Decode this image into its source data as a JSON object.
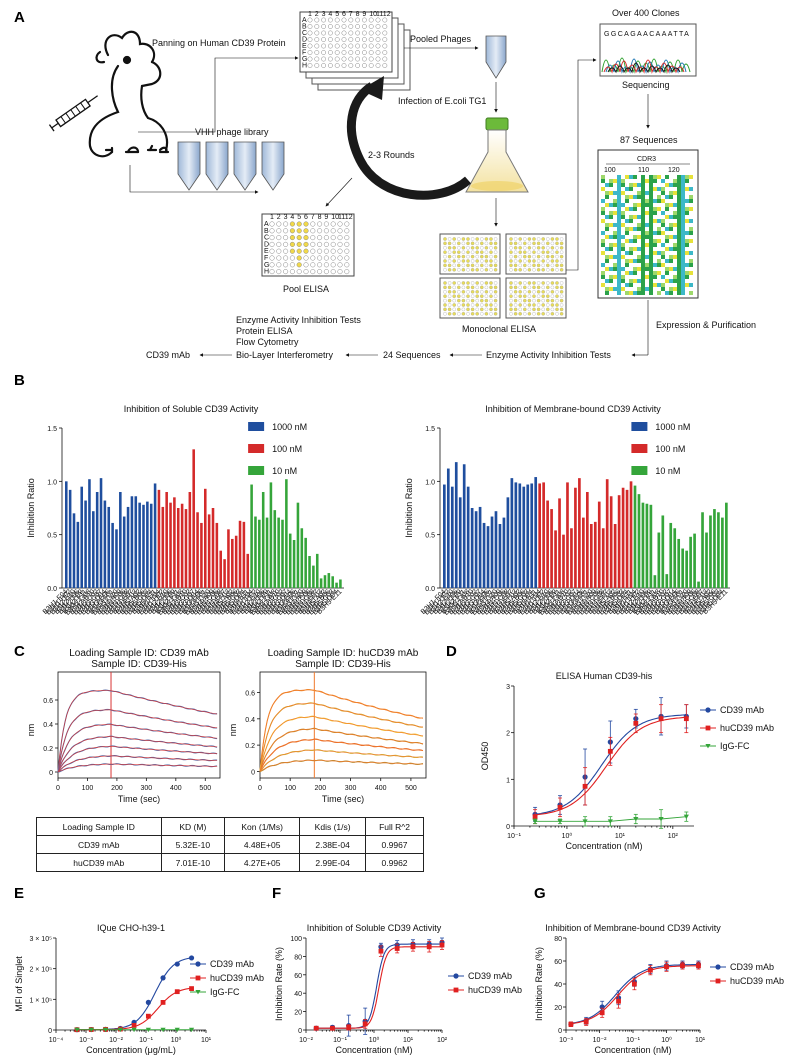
{
  "panels": {
    "a": "A",
    "b": "B",
    "c": "C",
    "d": "D",
    "e": "E",
    "f": "F",
    "g": "G"
  },
  "workflow": {
    "panning": "Panning on Human CD39 Protein",
    "pooled_phages": "Pooled Phages",
    "over_clones": "Over 400 Clones",
    "sequencing": "Sequencing",
    "infection": "Infection of E.coli TG1",
    "vhh_library": "VHH phage library",
    "rounds": "2-3 Rounds",
    "sequences87": "87 Sequences",
    "cdr3": "CDR3",
    "aln_ticks": [
      "100",
      "110",
      "120"
    ],
    "pool_elisa": "Pool ELISA",
    "monoclonal_elisa": "Monoclonal ELISA",
    "expression": "Expression & Purification",
    "tests_list": [
      "Enzyme Activity Inhibition Tests",
      "Protein ELISA",
      "Flow Cytometry",
      "Bio-Layer Interferometry"
    ],
    "cd39_mab": "CD39 mAb",
    "seq24": "24 Sequences",
    "enzyme_tests": "Enzyme Activity Inhibition Tests",
    "dna_seq": "GGCAGAACAAATTA",
    "plate_rows": [
      "A",
      "B",
      "C",
      "D",
      "E",
      "F",
      "G",
      "H"
    ],
    "plate_cols": [
      "1",
      "2",
      "3",
      "4",
      "5",
      "6",
      "7",
      "8",
      "9",
      "10",
      "11",
      "12"
    ]
  },
  "kinetics_table": {
    "headers": [
      "Loading Sample ID",
      "KD (M)",
      "Kon (1/Ms)",
      "Kdis (1/s)",
      "Full R^2"
    ],
    "rows": [
      [
        "CD39 mAb",
        "5.32E-10",
        "4.48E+05",
        "2.38E-04",
        "0.9967"
      ],
      [
        "huCD39 mAb",
        "7.01E-10",
        "4.27E+05",
        "2.99E-04",
        "0.9962"
      ]
    ]
  },
  "colors": {
    "blue": "#1f4e9e",
    "red": "#d42a2a",
    "green": "#35a53a",
    "blue2": "#2348a0",
    "red2": "#e02020"
  },
  "chart_data": [
    {
      "id": "B1",
      "type": "bar",
      "title": "Inhibition of Soluble CD39 Activity",
      "ylabel": "Inhibition Ratio",
      "ylim": [
        0,
        1.5
      ],
      "yticks": [
        "0.0",
        "0.5",
        "1.0",
        "1.5"
      ],
      "legend": [
        "1000 nM",
        "100 nM",
        "10 nM"
      ],
      "categories": [
        "B3H1-F04",
        "B3H1-H02",
        "B3H2-E10",
        "B3H2-F06",
        "B3H2-F09",
        "B3H2-F11",
        "B3H2-G08",
        "B3H3-B10",
        "B3H3-C02",
        "B3H3-C07",
        "B3H3-D04",
        "B3H3-E06",
        "B3H3-F01",
        "B3H3-G10",
        "B3H4-A09",
        "B3H4-C06",
        "B3H4-C08",
        "B3H4-E07",
        "B3H4-F03",
        "B3H5-A02",
        "B3H5-B06",
        "B3H5-C03",
        "B3H5-D04",
        "B3H5-E11"
      ],
      "series": [
        {
          "name": "1000 nM",
          "values": [
            1.0,
            0.92,
            0.7,
            0.62,
            0.95,
            0.82,
            1.02,
            0.72,
            0.9,
            1.03,
            0.82,
            0.76,
            0.61,
            0.55,
            0.9,
            0.67,
            0.76,
            0.86,
            0.86,
            0.8,
            0.78,
            0.81,
            0.79,
            0.98
          ]
        },
        {
          "name": "100 nM",
          "values": [
            0.92,
            0.76,
            0.9,
            0.8,
            0.85,
            0.75,
            0.79,
            0.74,
            0.9,
            1.3,
            0.71,
            0.61,
            0.93,
            0.69,
            0.75,
            0.61,
            0.35,
            0.27,
            0.55,
            0.46,
            0.49,
            0.63,
            0.62,
            0.32
          ]
        },
        {
          "name": "10 nM",
          "values": [
            0.97,
            0.67,
            0.64,
            0.9,
            0.66,
            0.99,
            0.73,
            0.66,
            0.64,
            1.02,
            0.51,
            0.45,
            0.8,
            0.56,
            0.47,
            0.3,
            0.21,
            0.32,
            0.09,
            0.12,
            0.14,
            0.11,
            0.05,
            0.08
          ]
        }
      ]
    },
    {
      "id": "B2",
      "type": "bar",
      "title": "Inhibition of Membrane-bound CD39 Activity",
      "ylabel": "Inhibition Ratio",
      "ylim": [
        0,
        1.5
      ],
      "yticks": [
        "0.0",
        "0.5",
        "1.0",
        "1.5"
      ],
      "legend": [
        "1000 nM",
        "100 nM",
        "10 nM"
      ],
      "categories": [
        "B3H1-F04",
        "B3H1-H02",
        "B3H2-E10",
        "B3H2-F06",
        "B3H2-F09",
        "B3H2-F11",
        "B3H2-G08",
        "B3H3-B10",
        "B3H3-C02",
        "B3H3-C07",
        "B3H3-D04",
        "B3H3-E06",
        "B3H3-F01",
        "B3H3-G10",
        "B3H4-A09",
        "B3H4-C06",
        "B3H4-C08",
        "B3H4-E07",
        "B3H4-F03",
        "B3H5-A02",
        "B3H5-B06",
        "B3H5-C03",
        "B3H5-D04",
        "B3H5-E11"
      ],
      "series": [
        {
          "name": "1000 nM",
          "values": [
            0.97,
            1.12,
            0.95,
            1.18,
            0.85,
            1.16,
            0.95,
            0.75,
            0.72,
            0.76,
            0.61,
            0.58,
            0.67,
            0.72,
            0.6,
            0.66,
            0.85,
            1.03,
            0.99,
            0.98,
            0.95,
            0.97,
            0.98,
            1.04
          ]
        },
        {
          "name": "100 nM",
          "values": [
            0.98,
            0.99,
            0.82,
            0.74,
            0.54,
            0.84,
            0.5,
            0.99,
            0.56,
            0.94,
            1.03,
            0.66,
            0.9,
            0.6,
            0.62,
            0.81,
            0.56,
            1.02,
            0.86,
            0.6,
            0.87,
            0.94,
            0.92,
            1.0
          ]
        },
        {
          "name": "10 nM",
          "values": [
            0.96,
            0.88,
            0.8,
            0.79,
            0.78,
            0.12,
            0.52,
            0.68,
            0.13,
            0.61,
            0.56,
            0.46,
            0.37,
            0.35,
            0.48,
            0.51,
            0.06,
            0.71,
            0.52,
            0.68,
            0.74,
            0.71,
            0.66,
            0.8
          ]
        }
      ]
    },
    {
      "id": "C1",
      "type": "line",
      "title_lines": [
        "Loading Sample ID: CD39 mAb",
        "Sample ID: CD39-His"
      ],
      "xlabel": "Time (sec)",
      "ylabel": "nm",
      "xlim": [
        0,
        550
      ],
      "ylim": [
        -0.05,
        0.75
      ],
      "xticks": [
        "0",
        "100",
        "200",
        "300",
        "400",
        "500"
      ],
      "yticks": [
        "0",
        "0.2",
        "0.4",
        "0.6"
      ],
      "assoc_end": 180,
      "plateaus": [
        0.68,
        0.52,
        0.4,
        0.3,
        0.22,
        0.14,
        0.07
      ],
      "offrate": 0.000238
    },
    {
      "id": "C2",
      "type": "line",
      "title_lines": [
        "Loading Sample ID: huCD39 mAb",
        "Sample ID: CD39-His"
      ],
      "xlabel": "Time (sec)",
      "ylabel": "nm",
      "xlim": [
        0,
        550
      ],
      "ylim": [
        -0.05,
        0.68
      ],
      "xticks": [
        "0",
        "100",
        "200",
        "300",
        "400",
        "500"
      ],
      "yticks": [
        "0",
        "0.2",
        "0.4",
        "0.6"
      ],
      "assoc_end": 180,
      "plateaus": [
        0.62,
        0.52,
        0.42,
        0.33,
        0.25,
        0.17,
        0.09
      ],
      "offrate": 0.000299
    },
    {
      "id": "D",
      "type": "line",
      "title": "ELISA Human CD39-his",
      "xlabel": "Concentration (nM)",
      "ylabel": "OD450",
      "xlog": true,
      "xlim": [
        -1,
        2.4
      ],
      "ylim": [
        0,
        3
      ],
      "xticks": [
        "10⁻¹",
        "10⁰",
        "10¹",
        "10²"
      ],
      "yticks": [
        "0",
        "1",
        "2",
        "3"
      ],
      "x": [
        0.25,
        0.74,
        2.2,
        6.6,
        20,
        60,
        180
      ],
      "series": [
        {
          "name": "CD39 mAb",
          "values": [
            0.25,
            0.45,
            1.05,
            1.8,
            2.3,
            2.35,
            2.35
          ],
          "err": [
            0.15,
            0.2,
            0.6,
            0.45,
            0.2,
            0.4,
            0.25
          ],
          "ec50": 4.5,
          "top": 2.4,
          "bottom": 0.2
        },
        {
          "name": "huCD39 mAb",
          "values": [
            0.2,
            0.4,
            0.85,
            1.6,
            2.2,
            2.3,
            2.3
          ],
          "err": [
            0.15,
            0.2,
            0.4,
            0.3,
            0.2,
            0.3,
            0.3
          ],
          "ec50": 5.5,
          "top": 2.35,
          "bottom": 0.2
        },
        {
          "name": "IgG-FC",
          "values": [
            0.1,
            0.1,
            0.1,
            0.1,
            0.15,
            0.15,
            0.2
          ],
          "err": [
            0.05,
            0.05,
            0.1,
            0.1,
            0.1,
            0.2,
            0.1
          ]
        }
      ]
    },
    {
      "id": "E",
      "type": "line",
      "title": "IQue CHO-h39-1",
      "xlabel": "Concentration (μg/mL)",
      "ylabel": "MFI of Singlet",
      "xlog": true,
      "xlim": [
        -4,
        1
      ],
      "ylim": [
        0,
        300000
      ],
      "xticks": [
        "10⁻⁴",
        "10⁻³",
        "10⁻²",
        "10⁻¹",
        "10⁰",
        "10¹"
      ],
      "yticks": [
        "0",
        "1 × 10⁵",
        "2 × 10⁵",
        "3 × 10⁵"
      ],
      "x": [
        0.0005,
        0.0015,
        0.0045,
        0.014,
        0.04,
        0.12,
        0.37,
        1.1,
        3.3
      ],
      "series": [
        {
          "name": "CD39 mAb",
          "values": [
            1000,
            1500,
            2000,
            5000,
            25000,
            90000,
            170000,
            215000,
            235000
          ],
          "ec50": 0.2,
          "top": 240000,
          "bottom": 1000
        },
        {
          "name": "huCD39 mAb",
          "values": [
            1000,
            1500,
            2000,
            3000,
            15000,
            45000,
            90000,
            125000,
            135000
          ],
          "ec50": 0.25,
          "top": 140000,
          "bottom": 1000
        },
        {
          "name": "IgG-FC",
          "values": [
            1000,
            1000,
            1000,
            1000,
            1000,
            1000,
            1000,
            1000,
            1000
          ]
        }
      ]
    },
    {
      "id": "F",
      "type": "line",
      "title": "Inhibition of Soluble CD39 Activity",
      "xlabel": "Concentration (nM)",
      "ylabel": "Inhibition Rate (%)",
      "xlog": true,
      "xlim": [
        -2,
        2
      ],
      "ylim": [
        -5,
        100
      ],
      "xticks": [
        "10⁻²",
        "10⁻¹",
        "10⁰",
        "10¹",
        "10²"
      ],
      "yticks": [
        "0",
        "20",
        "40",
        "60",
        "80",
        "100"
      ],
      "x": [
        0.02,
        0.06,
        0.18,
        0.55,
        1.6,
        4.8,
        14,
        42,
        100
      ],
      "series": [
        {
          "name": "CD39 mAb",
          "values": [
            -3,
            -2,
            0,
            5,
            90,
            92,
            93,
            93,
            95
          ],
          "err": [
            2,
            2,
            12,
            15,
            4,
            5,
            5,
            5,
            5
          ],
          "ec50": 1.2,
          "top": 93,
          "bottom": -3
        },
        {
          "name": "huCD39 mAb",
          "values": [
            -3,
            -3,
            -2,
            2,
            85,
            88,
            90,
            90,
            92
          ],
          "err": [
            2,
            2,
            3,
            5,
            6,
            5,
            5,
            6,
            5
          ],
          "ec50": 1.4,
          "top": 90,
          "bottom": -3
        }
      ]
    },
    {
      "id": "G",
      "type": "line",
      "title": "Inhibition of Membrane-bound CD39 Activity",
      "xlabel": "Concentration (nM)",
      "ylabel": "Inhibition Rate (%)",
      "xlog": true,
      "xlim": [
        -3,
        1
      ],
      "ylim": [
        0,
        80
      ],
      "xticks": [
        "10⁻³",
        "10⁻²",
        "10⁻¹",
        "10⁰",
        "10¹"
      ],
      "yticks": [
        "0",
        "20",
        "40",
        "60",
        "80"
      ],
      "x": [
        0.0014,
        0.004,
        0.012,
        0.037,
        0.11,
        0.33,
        1,
        3,
        9
      ],
      "series": [
        {
          "name": "CD39 mAb",
          "values": [
            5,
            8,
            20,
            28,
            42,
            53,
            56,
            57,
            57
          ],
          "err": [
            2,
            3,
            5,
            6,
            4,
            4,
            4,
            3,
            3
          ],
          "ec50": 0.03,
          "top": 57,
          "bottom": 4
        },
        {
          "name": "huCD39 mAb",
          "values": [
            5,
            7,
            15,
            25,
            40,
            52,
            55,
            56,
            56
          ],
          "err": [
            2,
            3,
            4,
            6,
            5,
            4,
            4,
            3,
            3
          ],
          "ec50": 0.035,
          "top": 56,
          "bottom": 4
        }
      ]
    }
  ]
}
